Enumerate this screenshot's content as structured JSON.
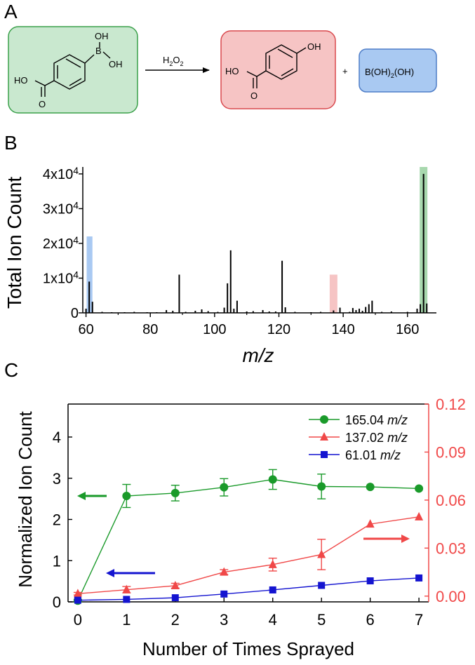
{
  "panel_labels": {
    "a": "A",
    "b": "B",
    "c": "C"
  },
  "reaction": {
    "reactant_substituents": {
      "acid": "HO",
      "carbonyl_o": "O",
      "boron": "B",
      "oh_top": "OH",
      "oh_right": "OH"
    },
    "reagent": "H2O2",
    "product_substituents": {
      "acid": "HO",
      "carbonyl_o": "O",
      "phenol": "OH"
    },
    "plus": "+",
    "byproduct": "B(OH)2(OH)",
    "colors": {
      "reactant_fill": "#c9e8cf",
      "reactant_border": "#3aa04a",
      "product_fill": "#f6c4c4",
      "product_border": "#d9484d",
      "byproduct_fill": "#a9c9f2",
      "byproduct_border": "#4f7ec8"
    }
  },
  "chart_data": [
    {
      "type": "bar",
      "panel": "B",
      "title": "",
      "xlabel": "m/z",
      "ylabel": "Total Ion Count",
      "xlim": [
        59,
        169
      ],
      "ylim": [
        0,
        42000
      ],
      "x_ticks": [
        "60",
        "80",
        "100",
        "120",
        "140",
        "160"
      ],
      "y_ticks": [
        "0",
        "1x10^4",
        "2x10^4",
        "3x10^4",
        "4x10^4"
      ],
      "highlights": [
        {
          "name": "61.01 m/z",
          "from": 60.2,
          "to": 62.0,
          "top": 22000,
          "color": "#a9c9f2"
        },
        {
          "name": "137.02 m/z",
          "from": 135.8,
          "to": 138.2,
          "top": 11000,
          "color": "#f6c4c4"
        },
        {
          "name": "165.04 m/z",
          "from": 163.8,
          "to": 166.2,
          "top": 42000,
          "color": "#a8d8ae"
        }
      ],
      "peaks": [
        [
          60,
          1200
        ],
        [
          61,
          9000
        ],
        [
          62,
          3200
        ],
        [
          65,
          300
        ],
        [
          68,
          200
        ],
        [
          72,
          200
        ],
        [
          75,
          300
        ],
        [
          79,
          200
        ],
        [
          82,
          200
        ],
        [
          85,
          800
        ],
        [
          87,
          600
        ],
        [
          89,
          11000
        ],
        [
          91,
          300
        ],
        [
          94,
          600
        ],
        [
          96,
          1000
        ],
        [
          98,
          500
        ],
        [
          101,
          300
        ],
        [
          103,
          1500
        ],
        [
          104,
          8500
        ],
        [
          105,
          18000
        ],
        [
          106,
          1200
        ],
        [
          107,
          3500
        ],
        [
          110,
          400
        ],
        [
          112,
          500
        ],
        [
          115,
          800
        ],
        [
          117,
          400
        ],
        [
          119,
          400
        ],
        [
          121,
          15000
        ],
        [
          122,
          1600
        ],
        [
          125,
          300
        ],
        [
          130,
          200
        ],
        [
          133,
          300
        ],
        [
          137,
          700
        ],
        [
          139,
          1500
        ],
        [
          142,
          300
        ],
        [
          143,
          1400
        ],
        [
          144,
          800
        ],
        [
          145,
          1200
        ],
        [
          146,
          600
        ],
        [
          147,
          1700
        ],
        [
          148,
          2500
        ],
        [
          149,
          3500
        ],
        [
          152,
          300
        ],
        [
          155,
          400
        ],
        [
          160,
          300
        ],
        [
          163,
          1200
        ],
        [
          164,
          2500
        ],
        [
          165,
          40000
        ],
        [
          166,
          2700
        ]
      ]
    },
    {
      "type": "line",
      "panel": "C",
      "title": "",
      "xlabel": "Number of Times Sprayed",
      "ylabel": "Normalized Ion Count",
      "y2label": "",
      "xlim": [
        -0.2,
        7.2
      ],
      "ylim": [
        0,
        4.8
      ],
      "y2lim": [
        -0.0036,
        0.12
      ],
      "x_ticks": [
        "0",
        "1",
        "2",
        "3",
        "4",
        "5",
        "6",
        "7"
      ],
      "y_ticks": [
        "0",
        "1",
        "2",
        "3",
        "4"
      ],
      "y2_ticks": [
        "0.00",
        "0.03",
        "0.06",
        "0.09",
        "0.12"
      ],
      "x": [
        0,
        1,
        2,
        3,
        4,
        5,
        6,
        7
      ],
      "legend_position": "top-right",
      "series": [
        {
          "name": "165.04",
          "unit": "m/z",
          "axis": "left",
          "color": "#1a9a2a",
          "marker": "circle",
          "values": [
            0.03,
            2.57,
            2.64,
            2.78,
            2.97,
            2.8,
            2.79,
            2.75
          ],
          "errors": [
            0.03,
            0.28,
            0.19,
            0.21,
            0.24,
            0.3,
            0.0,
            0.0
          ]
        },
        {
          "name": "137.02",
          "unit": "m/z",
          "axis": "right",
          "color": "#f04848",
          "marker": "triangle",
          "values": [
            0.0015,
            0.004,
            0.0065,
            0.015,
            0.0197,
            0.026,
            0.045,
            0.0495
          ],
          "errors": [
            0.0008,
            0.002,
            0.0015,
            0.0015,
            0.004,
            0.0095,
            0.0,
            0.0
          ]
        },
        {
          "name": "61.01",
          "unit": "m/z",
          "axis": "left",
          "color": "#1414d0",
          "marker": "square",
          "values": [
            0.04,
            0.06,
            0.1,
            0.19,
            0.29,
            0.4,
            0.51,
            0.58
          ],
          "errors": [
            0,
            0,
            0,
            0,
            0,
            0,
            0,
            0
          ]
        }
      ],
      "axis_arrows": [
        {
          "name": "green-left-arrow",
          "points_to": "left",
          "color": "#1a9a2a"
        },
        {
          "name": "blue-left-arrow",
          "points_to": "left",
          "color": "#1414d0"
        },
        {
          "name": "red-right-arrow",
          "points_to": "right",
          "color": "#f04848"
        }
      ]
    }
  ]
}
